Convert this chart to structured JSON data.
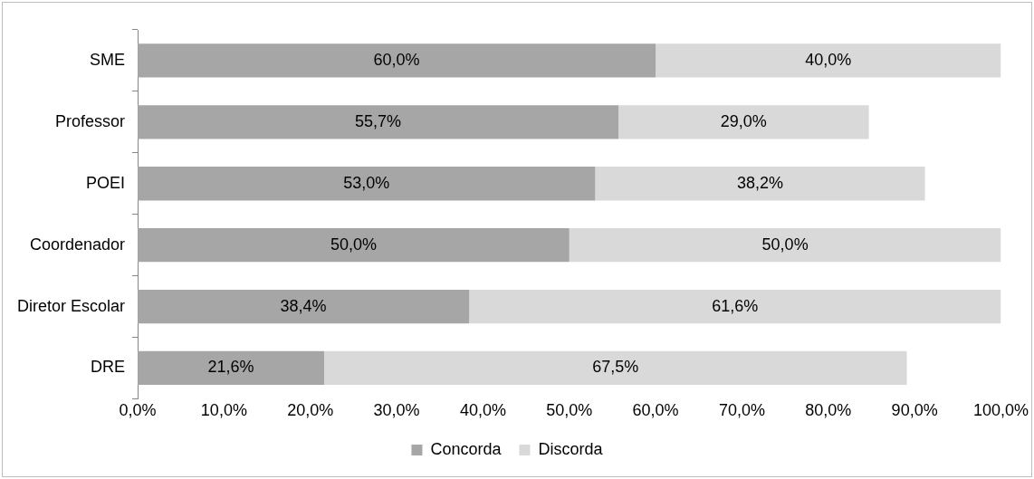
{
  "chart_data": {
    "type": "bar",
    "orientation": "horizontal",
    "stacked": true,
    "categories": [
      "SME",
      "Professor",
      "POEI",
      "Coordenador",
      "Diretor Escolar",
      "DRE"
    ],
    "series": [
      {
        "name": "Concorda",
        "color": "#a6a6a6",
        "values": [
          60.0,
          55.7,
          53.0,
          50.0,
          38.4,
          21.6
        ],
        "value_labels": [
          "60,0%",
          "55,7%",
          "53,0%",
          "50,0%",
          "38,4%",
          "21,6%"
        ]
      },
      {
        "name": "Discorda",
        "color": "#d9d9d9",
        "values": [
          40.0,
          29.0,
          38.2,
          50.0,
          61.6,
          67.5
        ],
        "value_labels": [
          "40,0%",
          "29,0%",
          "38,2%",
          "50,0%",
          "61,6%",
          "67,5%"
        ]
      }
    ],
    "xlim": [
      0,
      100
    ],
    "xticks": [
      {
        "value": 0,
        "label": "0,0%"
      },
      {
        "value": 10,
        "label": "10,0%"
      },
      {
        "value": 20,
        "label": "20,0%"
      },
      {
        "value": 30,
        "label": "30,0%"
      },
      {
        "value": 40,
        "label": "40,0%"
      },
      {
        "value": 50,
        "label": "50,0%"
      },
      {
        "value": 60,
        "label": "60,0%"
      },
      {
        "value": 70,
        "label": "70,0%"
      },
      {
        "value": 80,
        "label": "80,0%"
      },
      {
        "value": 90,
        "label": "90,0%"
      },
      {
        "value": 100,
        "label": "100,0%"
      }
    ],
    "grid": false,
    "legend": "bottom"
  }
}
